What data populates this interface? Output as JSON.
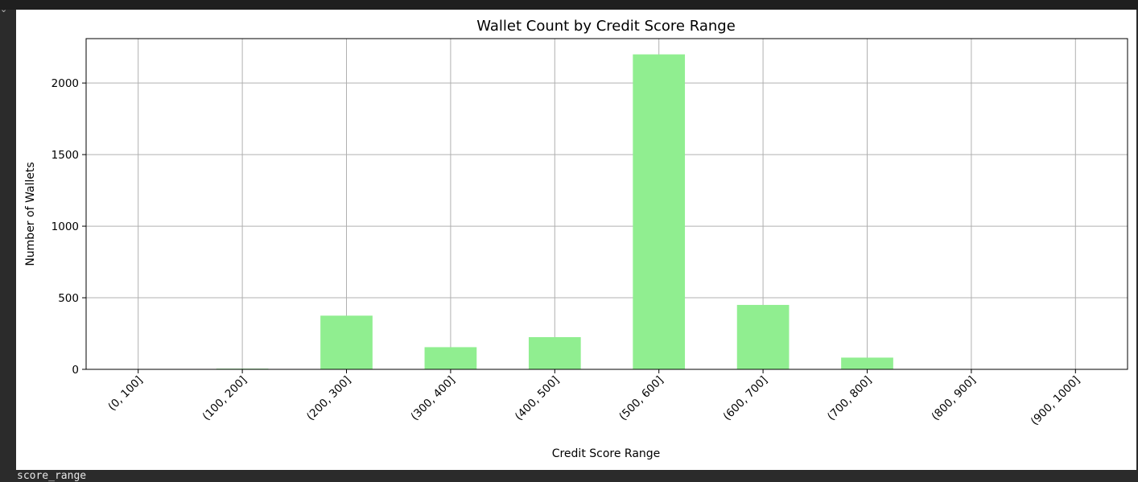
{
  "cell": {
    "output_text": "score_range",
    "gutter_icon": "chevron-down-icon"
  },
  "colors": {
    "bar": "#90ee90",
    "grid": "#b0b0b0",
    "axis": "#000000",
    "background": "#ffffff",
    "page": "#2b2b2b"
  },
  "chart_data": {
    "type": "bar",
    "title": "Wallet Count by Credit Score Range",
    "xlabel": "Credit Score Range",
    "ylabel": "Number of Wallets",
    "categories": [
      "(0, 100]",
      "(100, 200]",
      "(200, 300]",
      "(300, 400]",
      "(400, 500]",
      "(500, 600]",
      "(600, 700]",
      "(700, 800]",
      "(800, 900]",
      "(900, 1000]"
    ],
    "values": [
      0,
      5,
      375,
      155,
      225,
      2200,
      450,
      82,
      0,
      0
    ],
    "ylim": [
      0,
      2310
    ],
    "yticks": [
      0,
      500,
      1000,
      1500,
      2000
    ],
    "grid": true,
    "legend": "none"
  }
}
